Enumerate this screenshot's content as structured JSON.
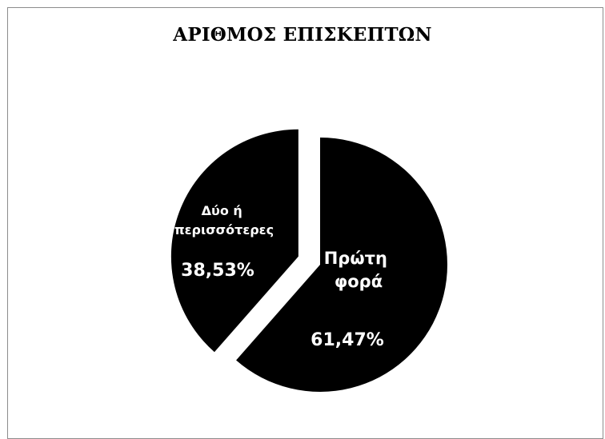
{
  "chart_data": {
    "type": "pie",
    "title": "ΑΡΙΘΜΟΣ ΕΠΙΣΚΕΠΤΩΝ",
    "slices": [
      {
        "label_lines": [
          "Πρώτη",
          "φορά"
        ],
        "value": 61.47,
        "value_label": "61,47%",
        "exploded": false
      },
      {
        "label_lines": [
          "Δύο ή",
          "περισσότερες"
        ],
        "value": 38.53,
        "value_label": "38,53%",
        "exploded": true
      }
    ],
    "legend": "none",
    "colors": {
      "slice_fill": "#000000",
      "label_text": "#ffffff",
      "border": "#8c8c8c"
    }
  }
}
